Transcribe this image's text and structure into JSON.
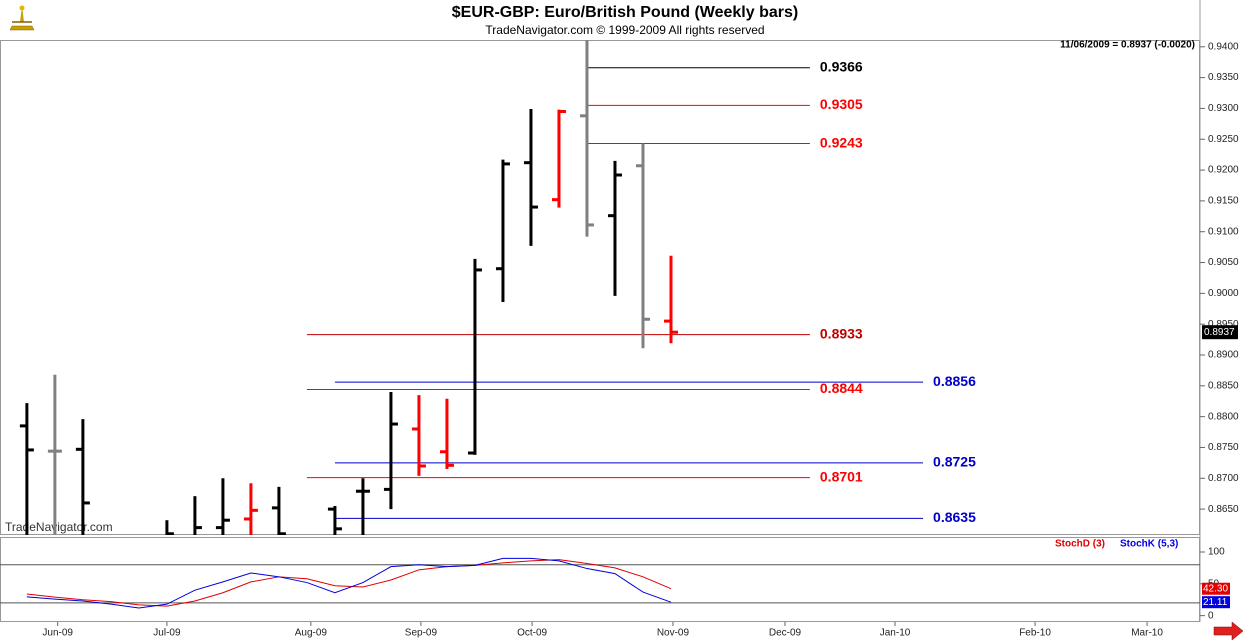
{
  "chart_data": [
    {
      "type": "ohlc",
      "title": "$EUR-GBP:  Euro/British Pound  (Weekly bars)",
      "subtitle": "TradeNavigator.com © 1999-2009 All rights reserved",
      "info": "11/06/2009 = 0.8937 (-0.0020)",
      "watermark": "TradeNavigator.com",
      "last_price": 0.8937,
      "xlim": [
        -0.96,
        41.89
      ],
      "ylim": [
        0.8608,
        0.9411
      ],
      "yticks": [
        {
          "value": 0.94,
          "label": "0.9400"
        },
        {
          "value": 0.935,
          "label": "0.9350"
        },
        {
          "value": 0.93,
          "label": "0.9300"
        },
        {
          "value": 0.925,
          "label": "0.9250"
        },
        {
          "value": 0.92,
          "label": "0.9200"
        },
        {
          "value": 0.915,
          "label": "0.9150"
        },
        {
          "value": 0.91,
          "label": "0.9100"
        },
        {
          "value": 0.905,
          "label": "0.9050"
        },
        {
          "value": 0.9,
          "label": "0.9000"
        },
        {
          "value": 0.895,
          "label": "0.8950"
        },
        {
          "value": 0.89,
          "label": "0.8900"
        },
        {
          "value": 0.885,
          "label": "0.8850"
        },
        {
          "value": 0.88,
          "label": "0.8800"
        },
        {
          "value": 0.875,
          "label": "0.8750"
        },
        {
          "value": 0.87,
          "label": "0.8700"
        },
        {
          "value": 0.865,
          "label": "0.8650"
        }
      ],
      "bars": [
        {
          "x": 0,
          "open": 0.8785,
          "high": 0.8822,
          "low": 0.858,
          "close": 0.8746,
          "color": "#000000"
        },
        {
          "x": 1,
          "open": 0.8744,
          "high": 0.8868,
          "low": 0.858,
          "close": 0.8744,
          "color": "#808080"
        },
        {
          "x": 2,
          "open": 0.8747,
          "high": 0.8796,
          "low": 0.858,
          "close": 0.866,
          "color": "#000000"
        },
        {
          "x": 5,
          "open": 0.86,
          "high": 0.8632,
          "low": 0.858,
          "close": 0.861,
          "color": "#000000"
        },
        {
          "x": 6,
          "open": 0.86,
          "high": 0.8671,
          "low": 0.858,
          "close": 0.862,
          "color": "#000000"
        },
        {
          "x": 7,
          "open": 0.862,
          "high": 0.87,
          "low": 0.859,
          "close": 0.8632,
          "color": "#000000"
        },
        {
          "x": 8,
          "open": 0.8634,
          "high": 0.8692,
          "low": 0.858,
          "close": 0.8648,
          "color": "#ff0000"
        },
        {
          "x": 9,
          "open": 0.8652,
          "high": 0.8686,
          "low": 0.858,
          "close": 0.861,
          "color": "#000000"
        },
        {
          "x": 11,
          "open": 0.865,
          "high": 0.8655,
          "low": 0.858,
          "close": 0.8618,
          "color": "#000000"
        },
        {
          "x": 12,
          "open": 0.8679,
          "high": 0.87,
          "low": 0.858,
          "close": 0.8679,
          "color": "#000000"
        },
        {
          "x": 13,
          "open": 0.8682,
          "high": 0.884,
          "low": 0.865,
          "close": 0.8788,
          "color": "#000000"
        },
        {
          "x": 14,
          "open": 0.878,
          "high": 0.8835,
          "low": 0.8704,
          "close": 0.872,
          "color": "#ff0000"
        },
        {
          "x": 15,
          "open": 0.8743,
          "high": 0.8829,
          "low": 0.8715,
          "close": 0.8721,
          "color": "#ff0000"
        },
        {
          "x": 16,
          "open": 0.8741,
          "high": 0.9056,
          "low": 0.8738,
          "close": 0.9038,
          "color": "#000000"
        },
        {
          "x": 17,
          "open": 0.904,
          "high": 0.9217,
          "low": 0.8986,
          "close": 0.921,
          "color": "#000000"
        },
        {
          "x": 18,
          "open": 0.9212,
          "high": 0.9299,
          "low": 0.9077,
          "close": 0.914,
          "color": "#000000"
        },
        {
          "x": 19,
          "open": 0.9152,
          "high": 0.9298,
          "low": 0.9139,
          "close": 0.9295,
          "color": "#ff0000"
        },
        {
          "x": 20,
          "open": 0.9288,
          "high": 0.9411,
          "low": 0.9092,
          "close": 0.9111,
          "color": "#808080"
        },
        {
          "x": 21,
          "open": 0.9126,
          "high": 0.9215,
          "low": 0.8996,
          "close": 0.9192,
          "color": "#000000"
        },
        {
          "x": 22,
          "open": 0.9207,
          "high": 0.9243,
          "low": 0.8911,
          "close": 0.8958,
          "color": "#808080"
        },
        {
          "x": 23,
          "open": 0.8955,
          "high": 0.9061,
          "low": 0.8919,
          "close": 0.8937,
          "color": "#ff0000"
        }
      ],
      "levels": [
        {
          "value": 0.9366,
          "color": "#000000",
          "start": 20,
          "end": 27.96
        },
        {
          "value": 0.9305,
          "color": "#ff0000",
          "start": 20,
          "end": 27.96
        },
        {
          "value": 0.9243,
          "color": "#ff0000",
          "start": 20,
          "end": 27.96
        },
        {
          "value": 0.8933,
          "color": "#c00000",
          "start": 10,
          "end": 27.96
        },
        {
          "value": 0.8844,
          "color": "#ff0000",
          "start": 10,
          "end": 27.96
        },
        {
          "value": 0.8701,
          "color": "#ff0000",
          "start": 10,
          "end": 27.96
        },
        {
          "value": 0.8856,
          "color": "#0000c8",
          "start": 11,
          "end": 32
        },
        {
          "value": 0.8725,
          "color": "#0000c8",
          "start": 11,
          "end": 32
        },
        {
          "value": 0.8635,
          "color": "#0000c8",
          "start": 11,
          "end": 32
        }
      ]
    },
    {
      "type": "line",
      "xlim": [
        -0.96,
        41.89
      ],
      "ylim": [
        -10,
        122
      ],
      "yticks": [
        0,
        50,
        100
      ],
      "levels": [
        20,
        80
      ],
      "x": [
        0,
        1,
        2,
        3,
        4,
        5,
        6,
        7,
        8,
        9,
        10,
        11,
        12,
        13,
        14,
        15,
        16,
        17,
        18,
        19,
        20,
        21,
        22,
        23
      ],
      "xticks": [
        {
          "value": 1.1,
          "label": "Jun-09"
        },
        {
          "value": 5,
          "label": "Jul-09"
        },
        {
          "value": 10.14,
          "label": "Aug-09"
        },
        {
          "value": 14.07,
          "label": "Sep-09"
        },
        {
          "value": 18.04,
          "label": "Oct-09"
        },
        {
          "value": 23.07,
          "label": "Nov-09"
        },
        {
          "value": 27.07,
          "label": "Dec-09"
        },
        {
          "value": 31,
          "label": "Jan-10"
        },
        {
          "value": 36,
          "label": "Feb-10"
        },
        {
          "value": 40,
          "label": "Mar-10"
        }
      ],
      "series": [
        {
          "name": "StochD (3)",
          "color": "#e00000",
          "values": [
            34,
            29,
            25,
            22,
            17,
            15,
            23,
            36,
            53,
            61,
            58,
            47,
            45,
            56,
            72,
            77,
            79,
            83,
            86,
            88,
            82,
            75,
            61,
            42.3
          ],
          "value_labels": [
            null,
            null,
            null,
            null,
            null,
            null,
            null,
            null,
            null,
            null,
            null,
            null,
            null,
            null,
            null,
            null,
            null,
            null,
            null,
            null,
            null,
            null,
            null,
            "42.30"
          ]
        },
        {
          "name": "StochK (5,3)",
          "color": "#0000e0",
          "values": [
            29.5,
            26,
            23,
            18,
            12,
            18,
            40,
            53,
            67,
            61,
            52,
            36,
            52,
            77,
            80,
            77,
            79,
            90,
            90,
            86,
            74,
            66,
            37,
            21.11
          ],
          "value_labels": [
            null,
            null,
            null,
            null,
            null,
            null,
            null,
            null,
            null,
            null,
            null,
            null,
            null,
            null,
            null,
            null,
            null,
            null,
            null,
            null,
            null,
            null,
            null,
            "21.11"
          ]
        }
      ]
    }
  ]
}
